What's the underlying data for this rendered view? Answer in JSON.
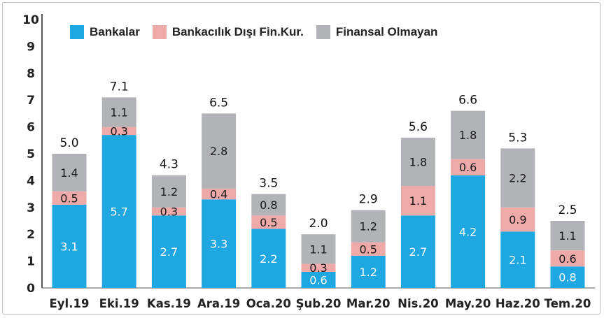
{
  "chart_data": {
    "type": "bar",
    "stacked": true,
    "categories": [
      "Eyl.19",
      "Eki.19",
      "Kas.19",
      "Ara.19",
      "Oca.20",
      "Şub.20",
      "Mar.20",
      "Nis.20",
      "May.20",
      "Haz.20",
      "Tem.20"
    ],
    "series": [
      {
        "name": "Bankalar",
        "color": "#1ea7e1",
        "label_color": "#ffffff",
        "values": [
          3.1,
          5.7,
          2.7,
          3.3,
          2.2,
          0.6,
          1.2,
          2.7,
          4.2,
          2.1,
          0.8
        ]
      },
      {
        "name": "Bankacılık Dışı Fin.Kur.",
        "color": "#eea9a9",
        "label_color": "#1a1a1a",
        "values": [
          0.5,
          0.3,
          0.3,
          0.4,
          0.5,
          0.3,
          0.5,
          1.1,
          0.6,
          0.9,
          0.6
        ]
      },
      {
        "name": "Finansal Olmayan",
        "color": "#b1b3b6",
        "label_color": "#1a1a1a",
        "values": [
          1.4,
          1.1,
          1.2,
          2.8,
          0.8,
          1.1,
          1.2,
          1.8,
          1.8,
          2.2,
          1.1
        ]
      }
    ],
    "totals": [
      "5.0",
      "7.1",
      "4.3",
      "6.5",
      "3.5",
      "2.0",
      "2.9",
      "5.6",
      "6.6",
      "5.3",
      "2.5"
    ],
    "ylim": [
      0,
      10
    ],
    "yticks": [
      0,
      1,
      2,
      3,
      4,
      5,
      6,
      7,
      8,
      9,
      10
    ],
    "title": "",
    "xlabel": "",
    "ylabel": "",
    "grid": false,
    "legend_position": "top"
  }
}
